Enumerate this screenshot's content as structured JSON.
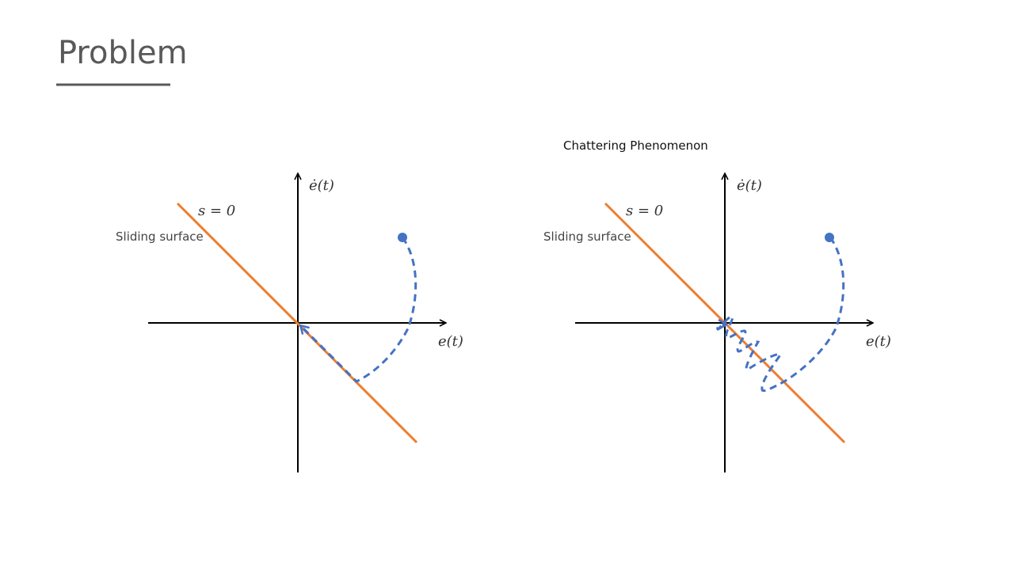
{
  "header": {
    "title": "Problem"
  },
  "diagrams": [
    {
      "y_axis_label": "ė(t)",
      "x_axis_label": "e(t)",
      "surface_equation": "s = 0",
      "surface_label": "Sliding surface"
    },
    {
      "caption": "Chattering Phenomenon",
      "y_axis_label": "ė(t)",
      "x_axis_label": "e(t)",
      "surface_equation": "s = 0",
      "surface_label": "Sliding surface"
    }
  ]
}
